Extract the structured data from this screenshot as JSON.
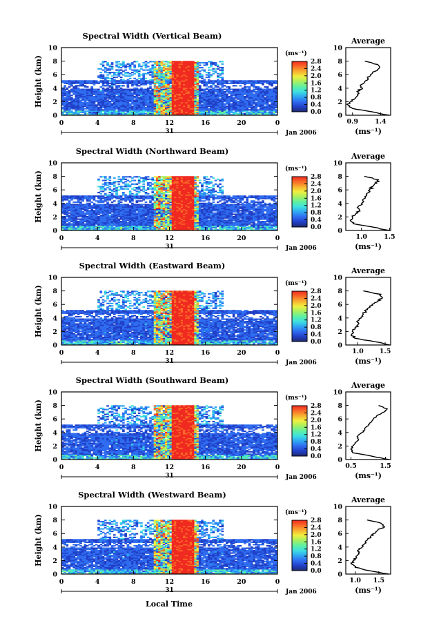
{
  "colors": {
    "background": "#ffffff",
    "colorbar_stops": [
      "#1f2a6e",
      "#2140c8",
      "#2f6cf0",
      "#2fa8f2",
      "#3fe0e0",
      "#60f0a0",
      "#a8f060",
      "#f0f040",
      "#f8b030",
      "#f86a28",
      "#f02a20"
    ],
    "heavy_rain": "#f03a2a",
    "low_width": "#2d58e6"
  },
  "chart_data": [
    {
      "type": "heatmap",
      "title": "Spectral Width (Vertical Beam)",
      "ylabel": "Height (km)",
      "y_ticks": [
        "0",
        "2",
        "4",
        "6",
        "8",
        "10"
      ],
      "x_ticks": [
        "0",
        "4",
        "8",
        "12",
        "16",
        "20",
        "0"
      ],
      "date_day": "31",
      "date_label": "Jan 2006",
      "ylim": [
        0,
        10
      ],
      "xlim": [
        0,
        24
      ],
      "colorbar": {
        "unit": "(ms⁻¹)",
        "ticks": [
          "0.0",
          "0.4",
          "0.8",
          "1.2",
          "1.6",
          "2.0",
          "2.4",
          "2.8"
        ],
        "range": [
          0,
          2.8
        ]
      },
      "profile": {
        "title": "Average",
        "xlabel": "(ms⁻¹)",
        "x_ticks": [
          "0.9",
          "1.4"
        ],
        "y_ticks": [
          "0",
          "2",
          "4",
          "6",
          "8",
          "10"
        ],
        "xlim": [
          0.78,
          1.58
        ],
        "heights": [
          0,
          0.5,
          1,
          1.5,
          2,
          2.5,
          3,
          3.5,
          4,
          4.5,
          5,
          5.5,
          6,
          6.5,
          7,
          7.5,
          8
        ],
        "values": [
          1.55,
          1.25,
          0.9,
          0.82,
          0.86,
          0.95,
          1.0,
          0.98,
          1.08,
          1.05,
          1.12,
          1.18,
          1.22,
          1.3,
          1.38,
          1.35,
          1.12
        ]
      }
    },
    {
      "type": "heatmap",
      "title": "Spectral Width (Northward Beam)",
      "ylabel": "Height (km)",
      "y_ticks": [
        "0",
        "2",
        "4",
        "6",
        "8",
        "10"
      ],
      "x_ticks": [
        "0",
        "4",
        "8",
        "12",
        "16",
        "20",
        "0"
      ],
      "date_day": "31",
      "date_label": "Jan 2006",
      "ylim": [
        0,
        10
      ],
      "xlim": [
        0,
        24
      ],
      "colorbar": {
        "unit": "(ms⁻¹)",
        "ticks": [
          "0.0",
          "0.4",
          "0.8",
          "1.2",
          "1.6",
          "2.0",
          "2.4",
          "2.8"
        ],
        "range": [
          0,
          2.8
        ]
      },
      "profile": {
        "title": "Average",
        "xlabel": "(ms⁻¹)",
        "x_ticks": [
          "1.0",
          "1.5"
        ],
        "y_ticks": [
          "0",
          "2",
          "4",
          "6",
          "8",
          "10"
        ],
        "xlim": [
          0.72,
          1.52
        ],
        "heights": [
          0,
          0.5,
          1,
          1.5,
          2,
          2.5,
          3,
          3.5,
          4,
          4.5,
          5,
          5.5,
          6,
          6.5,
          7,
          7.5,
          8
        ],
        "values": [
          1.5,
          1.2,
          0.85,
          0.8,
          0.84,
          0.9,
          0.96,
          0.94,
          1.0,
          1.02,
          1.06,
          1.1,
          1.15,
          1.2,
          1.27,
          1.3,
          1.05
        ]
      }
    },
    {
      "type": "heatmap",
      "title": "Spectral Width (Eastward Beam)",
      "ylabel": "Height (km)",
      "y_ticks": [
        "0",
        "2",
        "4",
        "6",
        "8",
        "10"
      ],
      "x_ticks": [
        "0",
        "4",
        "8",
        "12",
        "16",
        "20",
        "0"
      ],
      "date_day": "31",
      "date_label": "Jan 2006",
      "ylim": [
        0,
        10
      ],
      "xlim": [
        0,
        24
      ],
      "colorbar": {
        "unit": "(ms⁻¹)",
        "ticks": [
          "0.0",
          "0.4",
          "0.8",
          "1.2",
          "1.6",
          "2.0",
          "2.4",
          "2.8"
        ],
        "range": [
          0,
          2.8
        ]
      },
      "profile": {
        "title": "Average",
        "xlabel": "(ms⁻¹)",
        "x_ticks": [
          "1.0",
          "1.5"
        ],
        "y_ticks": [
          "0",
          "2",
          "4",
          "6",
          "8",
          "10"
        ],
        "xlim": [
          0.78,
          1.6
        ],
        "heights": [
          0,
          0.5,
          1,
          1.5,
          2,
          2.5,
          3,
          3.5,
          4,
          4.5,
          5,
          5.5,
          6,
          6.5,
          7,
          7.5,
          8
        ],
        "values": [
          1.58,
          1.3,
          0.95,
          0.88,
          0.9,
          0.95,
          1.0,
          0.98,
          1.06,
          1.1,
          1.14,
          1.2,
          1.26,
          1.36,
          1.45,
          1.42,
          1.1
        ]
      }
    },
    {
      "type": "heatmap",
      "title": "Spectral Width (Southward Beam)",
      "ylabel": "Height (km)",
      "y_ticks": [
        "0",
        "2",
        "4",
        "6",
        "8",
        "10"
      ],
      "x_ticks": [
        "0",
        "4",
        "8",
        "12",
        "16",
        "20",
        "0"
      ],
      "date_day": "31",
      "date_label": "Jan 2006",
      "ylim": [
        0,
        10
      ],
      "xlim": [
        0,
        24
      ],
      "colorbar": {
        "unit": "(ms⁻¹)",
        "ticks": [
          "0.0",
          "0.4",
          "0.8",
          "1.2",
          "1.6",
          "2.0",
          "2.4",
          "2.8"
        ],
        "range": [
          0,
          2.8
        ]
      },
      "profile": {
        "title": "Average",
        "xlabel": "(ms⁻¹)",
        "x_ticks": [
          "0.5",
          "1.5"
        ],
        "y_ticks": [
          "0",
          "2",
          "4",
          "6",
          "8",
          "10"
        ],
        "xlim": [
          0.35,
          1.65
        ],
        "heights": [
          0,
          0.5,
          1,
          1.5,
          2,
          2.5,
          3,
          3.5,
          4,
          4.5,
          5,
          5.5,
          6,
          6.5,
          7,
          7.5,
          8
        ],
        "values": [
          1.6,
          1.1,
          0.55,
          0.5,
          0.55,
          0.62,
          0.72,
          0.7,
          0.82,
          0.9,
          1.0,
          1.08,
          1.15,
          1.25,
          1.45,
          1.55,
          1.3
        ]
      }
    },
    {
      "type": "heatmap",
      "title": "Spectral Width (Westward Beam)",
      "ylabel": "Height (km)",
      "y_ticks": [
        "0",
        "2",
        "4",
        "6",
        "8",
        "10"
      ],
      "x_ticks": [
        "0",
        "4",
        "8",
        "12",
        "16",
        "20",
        "0"
      ],
      "date_day": "31",
      "date_label": "Jan 2006",
      "ylim": [
        0,
        10
      ],
      "xlim": [
        0,
        24
      ],
      "colorbar": {
        "unit": "(ms⁻¹)",
        "ticks": [
          "0.0",
          "0.4",
          "0.8",
          "1.2",
          "1.6",
          "2.0",
          "2.4",
          "2.8"
        ],
        "range": [
          0,
          2.8
        ]
      },
      "profile": {
        "title": "Average",
        "xlabel": "(ms⁻¹)",
        "x_ticks": [
          "1.0",
          "1.5"
        ],
        "y_ticks": [
          "0",
          "2",
          "4",
          "6",
          "8",
          "10"
        ],
        "xlim": [
          0.8,
          1.75
        ],
        "heights": [
          0,
          0.5,
          1,
          1.5,
          2,
          2.5,
          3,
          3.5,
          4,
          4.5,
          5,
          5.5,
          6,
          6.5,
          7,
          7.5,
          8
        ],
        "values": [
          1.7,
          1.3,
          1.0,
          0.92,
          0.96,
          1.02,
          1.08,
          1.05,
          1.15,
          1.2,
          1.25,
          1.32,
          1.4,
          1.48,
          1.62,
          1.55,
          1.25
        ]
      }
    }
  ],
  "xlabel_bottom": "Local Time"
}
